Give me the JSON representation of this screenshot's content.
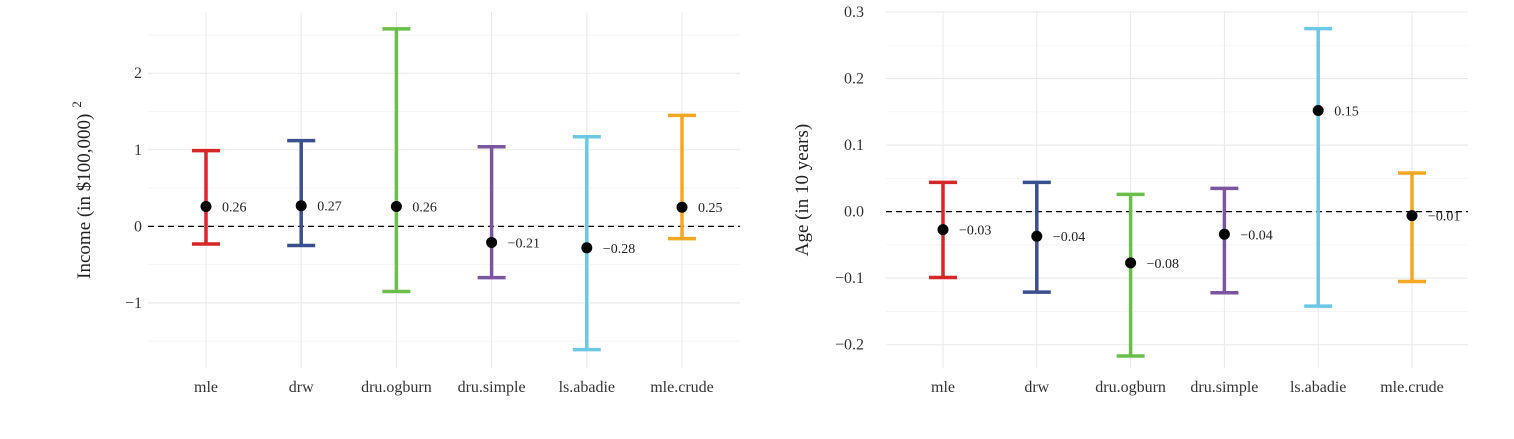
{
  "chart_data": [
    {
      "type": "errorbar",
      "ylabel": "Income (in $100,000)",
      "ylabel_superscript": "2",
      "ylim": [
        -1.85,
        2.8
      ],
      "yticks": [
        -1,
        0,
        1,
        2
      ],
      "ytick_labels": [
        "−1",
        "0",
        "1",
        "2"
      ],
      "reference_line": 0,
      "categories": [
        "mle",
        "drw",
        "dru.ogburn",
        "dru.simple",
        "ls.abadie",
        "mle.crude"
      ],
      "estimates": [
        0.26,
        0.27,
        0.26,
        -0.21,
        -0.28,
        0.25
      ],
      "lower": [
        -0.23,
        -0.25,
        -0.85,
        -0.67,
        -1.61,
        -0.16
      ],
      "upper": [
        0.99,
        1.12,
        2.58,
        1.04,
        1.17,
        1.45
      ],
      "value_labels": [
        "0.26",
        "0.27",
        "0.26",
        "−0.21",
        "−0.28",
        "0.25"
      ],
      "grid": true
    },
    {
      "type": "errorbar",
      "ylabel": "Age (in 10 years)",
      "ylim": [
        -0.235,
        0.3
      ],
      "yticks": [
        -0.2,
        -0.1,
        0.0,
        0.1,
        0.2,
        0.3
      ],
      "ytick_labels": [
        "−0.2",
        "−0.1",
        "0.0",
        "0.1",
        "0.2",
        "0.3"
      ],
      "reference_line": 0,
      "categories": [
        "mle",
        "drw",
        "dru.ogburn",
        "dru.simple",
        "ls.abadie",
        "mle.crude"
      ],
      "estimates": [
        -0.027,
        -0.037,
        -0.077,
        -0.034,
        0.152,
        -0.006
      ],
      "lower": [
        -0.099,
        -0.121,
        -0.217,
        -0.122,
        -0.142,
        -0.105
      ],
      "upper": [
        0.044,
        0.044,
        0.026,
        0.035,
        0.275,
        0.058
      ],
      "value_labels": [
        "−0.03",
        "−0.04",
        "−0.08",
        "−0.04",
        "0.15",
        "−0.01"
      ],
      "grid": true
    }
  ],
  "colors": {
    "series": [
      "#d62728",
      "#3a4f8f",
      "#6abf4b",
      "#7b559f",
      "#6cc7e3",
      "#f5a623"
    ],
    "point": "#000000",
    "reference_line": "#000000"
  }
}
